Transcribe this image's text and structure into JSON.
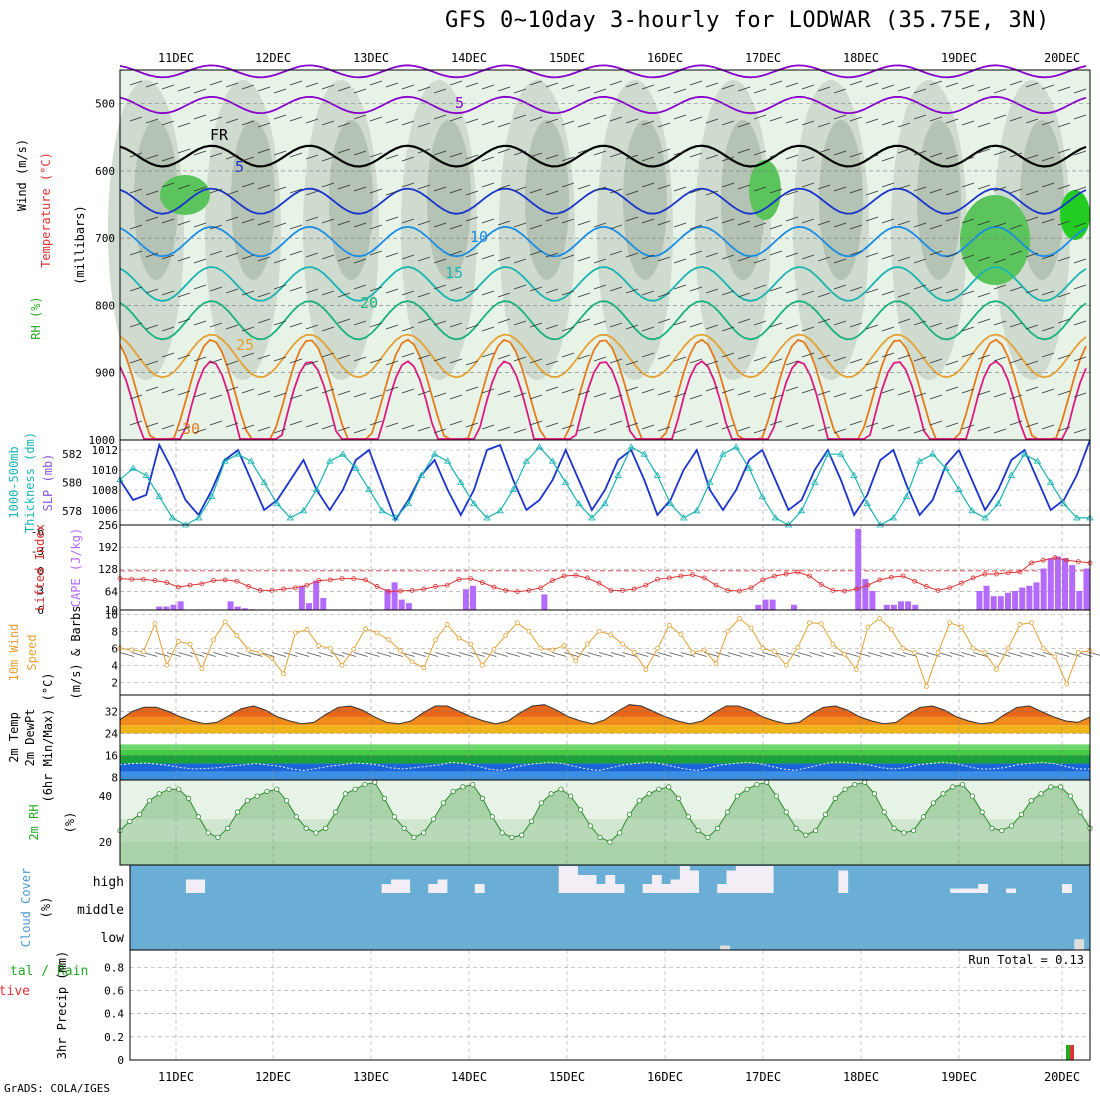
{
  "title": "GFS 0~10day 3-hourly for LODWAR (35.75E, 3N)",
  "footer": "GrADS: COLA/IGES",
  "dates": [
    "11DEC",
    "12DEC",
    "13DEC",
    "14DEC",
    "15DEC",
    "16DEC",
    "17DEC",
    "18DEC",
    "19DEC",
    "20DEC"
  ],
  "colors": {
    "rh_fill": "#c9d6c9",
    "rh_dark": "#a9b9a9",
    "rh_green": "#5cc45c",
    "rh_bright": "#22cc22",
    "temp_lines": [
      "#8800cc",
      "#000000",
      "#1a33cc",
      "#1a8ce6",
      "#1ab3b3",
      "#19b37a",
      "#e6a033",
      "#e67a1a",
      "#dd1a80"
    ],
    "slp": "#1a33cc",
    "thickness": "#1ab3b3",
    "cape": "#b36bff",
    "lifted_index": "#dd3333",
    "wind_speed": "#e6a033",
    "cloud_bg": "#6aaed6",
    "temp_bands": [
      "#d83a1a",
      "#e8661a",
      "#f08a1a",
      "#f0b41a",
      "#6ed86e",
      "#44cc44",
      "#1aa13a",
      "#1a66d8",
      "#3a8fe6"
    ]
  },
  "panels": [
    {
      "id": "upper",
      "labels": [
        {
          "text": "Wind (m/s)",
          "color": "#000"
        },
        {
          "text": "Temperature (°C)",
          "color": "#dd3333"
        },
        {
          "text": "(millibars)",
          "color": "#000"
        },
        {
          "text": "RH (%)",
          "color": "#22aa22"
        }
      ]
    },
    {
      "id": "slp",
      "labels": [
        {
          "text": "1000-500mb",
          "color": "#1ab3b3"
        },
        {
          "text": "Thickness (dm)",
          "color": "#1ab3b3"
        },
        {
          "text": "SLP (mb)",
          "color": "#8855dd"
        }
      ]
    },
    {
      "id": "cape",
      "labels": [
        {
          "text": "Lifted Index",
          "color": "#dd3333"
        },
        {
          "text": "CAPE (J/kg)",
          "color": "#b36bff"
        }
      ]
    },
    {
      "id": "wind",
      "labels": [
        {
          "text": "10m Wind",
          "color": "#e6a033"
        },
        {
          "text": "Speed",
          "color": "#e6a033"
        },
        {
          "text": "(m/s) & Barbs",
          "color": "#000"
        }
      ]
    },
    {
      "id": "temp",
      "labels": [
        {
          "text": "2m Temp",
          "color": "#000"
        },
        {
          "text": "2m DewPt",
          "color": "#000"
        },
        {
          "text": "(6hr Min/Max) (°C)",
          "color": "#000"
        }
      ]
    },
    {
      "id": "rh",
      "labels": [
        {
          "text": "2m RH",
          "color": "#22aa22"
        },
        {
          "text": "(%)",
          "color": "#000"
        }
      ]
    },
    {
      "id": "cloud",
      "labels": [
        {
          "text": "Cloud Cover",
          "color": "#4a9ad0"
        },
        {
          "text": "(%)",
          "color": "#000"
        }
      ]
    },
    {
      "id": "precip",
      "labels": [
        {
          "text": "tal / Rain",
          "color": "#22aa22"
        },
        {
          "text": "Convective",
          "color": "#dd3333"
        },
        {
          "text": "3hr Precip (mm)",
          "color": "#000"
        }
      ]
    }
  ],
  "chart_data": [
    {
      "type": "heatmap",
      "name": "upper-air cross section",
      "y_ticks": [
        500,
        600,
        700,
        800,
        900,
        1000
      ],
      "ylim": [
        1000,
        450
      ],
      "isotherm_labels": [
        {
          "text": "5",
          "color": "#8800cc"
        },
        {
          "text": "FR",
          "color": "#000000"
        },
        {
          "text": "5",
          "color": "#1a33cc"
        },
        {
          "text": "10",
          "color": "#1a8ce6"
        },
        {
          "text": "15",
          "color": "#1ab3b3"
        },
        {
          "text": "20",
          "color": "#19b37a"
        },
        {
          "text": "25",
          "color": "#e6a033"
        },
        {
          "text": "30",
          "color": "#e67a1a"
        }
      ],
      "isotherms_mean_hpa": [
        452,
        502,
        578,
        645,
        705,
        768,
        822,
        875,
        935,
        975
      ]
    },
    {
      "type": "line",
      "name": "SLP and thickness",
      "y_ticks_slp": [
        1006,
        1008,
        1010,
        1012
      ],
      "y_ticks_thickness": [
        578,
        580,
        582
      ],
      "slp_range": [
        1004.5,
        1013
      ],
      "thickness_range": [
        577,
        583
      ],
      "slp_series": [
        1009,
        1007,
        1007.5,
        1012.5,
        1010,
        1007,
        1005.5,
        1008,
        1011,
        1012,
        1009,
        1006,
        1007,
        1009,
        1011,
        1008,
        1006,
        1008,
        1011,
        1012,
        1008.5,
        1005,
        1007,
        1009.5,
        1011,
        1008,
        1005.5,
        1008,
        1012,
        1012.5,
        1009,
        1006,
        1007,
        1009,
        1012,
        1009,
        1006,
        1008,
        1011,
        1012,
        1009,
        1005.5,
        1007,
        1010,
        1012,
        1008,
        1006,
        1008,
        1011,
        1012,
        1009,
        1006,
        1007,
        1010,
        1012,
        1009,
        1005.5,
        1007.5,
        1011,
        1012,
        1008.5,
        1005.5,
        1007,
        1010.5,
        1012,
        1009,
        1006,
        1008,
        1011,
        1012,
        1009,
        1006,
        1007,
        1009.5,
        1013
      ],
      "thickness_series": [
        580.2,
        581,
        580.5,
        579,
        577.5,
        577,
        577.5,
        579,
        581.5,
        582,
        581.5,
        580,
        578.5,
        577.5,
        578,
        579.5,
        581.5,
        582,
        581,
        579.5,
        578,
        577.5,
        578.5,
        580.5,
        582,
        581.5,
        580,
        578.5,
        577.5,
        578,
        579.5,
        581.5,
        582.5,
        581.5,
        580,
        578.5,
        577.5,
        578.5,
        580.5,
        582.5,
        582,
        580.5,
        578.5,
        577.5,
        578,
        580,
        582,
        582.5,
        581,
        579,
        577.5,
        577,
        578,
        580,
        582,
        582,
        580.5,
        578.5,
        577,
        577.5,
        579,
        581.5,
        582,
        581,
        579.5,
        578,
        577.5,
        578.5,
        580.5,
        582,
        581.5,
        580,
        578.5,
        577.5,
        577.5
      ]
    },
    {
      "type": "bar",
      "name": "CAPE and Lifted Index",
      "y_ticks_cape": [
        10,
        64,
        128,
        192,
        256
      ],
      "y_ticks_li": [
        6,
        3,
        0,
        -3,
        -6
      ],
      "cape_range": [
        10,
        256
      ],
      "li_range": [
        6,
        -7
      ],
      "cape_values": [
        0,
        0,
        0,
        0,
        0,
        20,
        20,
        25,
        35,
        0,
        0,
        0,
        0,
        0,
        0,
        35,
        20,
        15,
        12,
        0,
        0,
        0,
        0,
        0,
        0,
        80,
        30,
        95,
        45,
        0,
        0,
        0,
        0,
        0,
        0,
        0,
        0,
        70,
        90,
        40,
        30,
        0,
        0,
        0,
        0,
        0,
        0,
        0,
        70,
        80,
        0,
        0,
        0,
        0,
        0,
        0,
        0,
        0,
        0,
        55,
        0,
        0,
        0,
        0,
        0,
        0,
        0,
        0,
        0,
        0,
        0,
        0,
        0,
        0,
        0,
        0,
        0,
        0,
        0,
        0,
        0,
        0,
        0,
        0,
        0,
        0,
        0,
        0,
        0,
        25,
        40,
        40,
        0,
        0,
        25,
        0,
        0,
        0,
        0,
        0,
        0,
        0,
        0,
        245,
        100,
        65,
        0,
        25,
        25,
        35,
        35,
        25,
        0,
        0,
        0,
        0,
        0,
        0,
        0,
        0,
        65,
        80,
        50,
        50,
        60,
        65,
        75,
        80,
        90,
        130,
        160,
        165,
        160,
        140,
        65,
        130
      ],
      "li_values": [
        1.2,
        1.3,
        1.3,
        1.5,
        1.8,
        2.5,
        2.2,
        2.0,
        1.5,
        1.4,
        1.6,
        2.4,
        3.0,
        3.0,
        2.8,
        2.6,
        2.2,
        1.5,
        1.4,
        1.2,
        1.2,
        1.4,
        2.4,
        3.2,
        3.1,
        3.0,
        2.8,
        2.4,
        2.2,
        1.3,
        1.2,
        1.8,
        2.5,
        3.0,
        3.2,
        3.0,
        2.6,
        1.5,
        0.8,
        0.7,
        1.1,
        1.9,
        3.0,
        3.0,
        2.8,
        2.2,
        1.3,
        1.1,
        0.8,
        0.6,
        1.1,
        2.2,
        3.0,
        3.1,
        2.6,
        1.4,
        0.8,
        0.5,
        0.2,
        0.8,
        2.1,
        3.0,
        3.1,
        2.8,
        2.2,
        1.4,
        1.0,
        0.8,
        1.6,
        2.4,
        3.0,
        2.6,
        1.9,
        1.1,
        0.5,
        0.5,
        0.3,
        0.2,
        -1.2,
        -1.6,
        -2.0,
        -1.6,
        -1.4,
        -1.2
      ]
    },
    {
      "type": "line",
      "name": "10m wind speed",
      "y_ticks": [
        2,
        4,
        6,
        8,
        10
      ],
      "ylim": [
        0.5,
        10.5
      ],
      "values": [
        6,
        5.8,
        5.6,
        8.9,
        4,
        6.8,
        6.5,
        3.6,
        7,
        9.1,
        7.5,
        5.8,
        5.5,
        4.8,
        3,
        7.8,
        8.2,
        6.3,
        6,
        4,
        5.9,
        8.3,
        7.8,
        7,
        5.7,
        4.4,
        3.7,
        7,
        8.8,
        7.2,
        6.5,
        4,
        5.9,
        7.5,
        9,
        8,
        6,
        5.8,
        6.3,
        4.5,
        6.5,
        8,
        7.6,
        6.5,
        5.5,
        3.5,
        6,
        8.7,
        7.6,
        5.5,
        5.8,
        4.2,
        8,
        9.5,
        8.4,
        6,
        5.6,
        4,
        6.1,
        9,
        8.9,
        6.5,
        5.3,
        3.5,
        8.5,
        9.5,
        8.2,
        6,
        5.5,
        1.5,
        5.5,
        9,
        8.5,
        6,
        5.5,
        3.5,
        6,
        8.8,
        9,
        6,
        5,
        1.8,
        5.5,
        5.7
      ]
    },
    {
      "type": "area",
      "name": "2m temperature and dewpoint",
      "y_ticks": [
        8,
        16,
        24,
        32
      ],
      "ylim": [
        7,
        38
      ],
      "temp_max_values": [
        29,
        32,
        33.5,
        33.5,
        32,
        30,
        28.5,
        27.5,
        28,
        30.5,
        33,
        34,
        32.5,
        30,
        28.5,
        27.5,
        28,
        31,
        33.5,
        34,
        32.5,
        30,
        28,
        27.5,
        28.5,
        31.5,
        34,
        34,
        32,
        30,
        28.5,
        27.5,
        28.5,
        31.5,
        34,
        34.5,
        32.5,
        30,
        28.5,
        27.5,
        29,
        32,
        34.5,
        34,
        32,
        30,
        28.5,
        27.5,
        28.5,
        31.5,
        34,
        34,
        32.5,
        30,
        28.5,
        27.5,
        28,
        31,
        33.5,
        34,
        32.5,
        30,
        28.5,
        27.5,
        28,
        31,
        33.5,
        34,
        32.5,
        30,
        28.5,
        27.5,
        28,
        31,
        33.5,
        34,
        32,
        30,
        28.5,
        28,
        30
      ],
      "dewpoint_values": [
        12.5,
        13,
        13.2,
        12.8,
        12.3,
        11.5,
        11,
        11.2,
        11.5,
        12,
        12.5,
        13,
        12.5,
        12,
        11,
        10.5,
        11.2,
        12,
        12.5,
        13.2,
        13,
        12.5,
        11.5,
        11,
        11.5,
        12,
        12.5,
        13.5,
        13,
        12.2,
        11,
        10.5,
        11.5,
        12.5,
        13,
        13.5,
        13,
        12,
        11,
        10.5,
        11.5,
        12.5,
        13,
        13.5,
        13,
        12,
        11,
        10.5,
        11.5,
        12.5,
        13,
        13.5,
        13,
        12,
        11,
        10.5,
        11.5,
        12.5,
        13.5,
        13.5,
        13,
        12.5,
        11.5,
        11,
        11.5,
        12.5,
        13,
        13.5,
        13,
        12,
        11,
        11,
        11.5,
        12.5,
        13,
        13.5,
        13,
        12,
        11,
        11
      ]
    },
    {
      "type": "area",
      "name": "2m relative humidity",
      "y_ticks": [
        20,
        40
      ],
      "ylim": [
        10,
        47
      ],
      "values": [
        25,
        29,
        32,
        38,
        41,
        43,
        43,
        39,
        31,
        24,
        22,
        26,
        33,
        38,
        40,
        42,
        43,
        38,
        31,
        26,
        24,
        26,
        33,
        41,
        43,
        45,
        46,
        39,
        31,
        26,
        22,
        24,
        30,
        37,
        42,
        44,
        45,
        39,
        31,
        24,
        22,
        23,
        29,
        37,
        41,
        43,
        40,
        34,
        27,
        22,
        20,
        24,
        32,
        38,
        41,
        43,
        44,
        39,
        31,
        25,
        22,
        26,
        33,
        40,
        43,
        45,
        46,
        40,
        33,
        26,
        23,
        25,
        32,
        39,
        43,
        45,
        46,
        41,
        33,
        26,
        24,
        25,
        31,
        37,
        41,
        44,
        45,
        40,
        33,
        26,
        25,
        27,
        32,
        38,
        41,
        44,
        44,
        40,
        33,
        26
      ]
    },
    {
      "type": "bar",
      "name": "cloud cover",
      "y_ticks": [
        "high",
        "middle",
        "low"
      ],
      "high_values": [
        0,
        0,
        0,
        0,
        0,
        0,
        15,
        15,
        0,
        0,
        0,
        0,
        0,
        0,
        0,
        0,
        0,
        0,
        0,
        0,
        0,
        0,
        0,
        0,
        0,
        0,
        0,
        10,
        15,
        15,
        0,
        0,
        10,
        15,
        0,
        0,
        0,
        10,
        0,
        0,
        0,
        0,
        0,
        0,
        0,
        0,
        30,
        30,
        20,
        20,
        10,
        20,
        10,
        0,
        0,
        10,
        20,
        10,
        15,
        30,
        25,
        0,
        0,
        10,
        25,
        30,
        30,
        30,
        30,
        0,
        0,
        0,
        0,
        0,
        0,
        0,
        25,
        0,
        0,
        0,
        0,
        0,
        0,
        0,
        0,
        0,
        0,
        0,
        5,
        5,
        5,
        10,
        0,
        0,
        5,
        0,
        0,
        0,
        0,
        0,
        10,
        0,
        0
      ],
      "low_values": [
        0,
        0,
        0,
        0,
        0,
        0,
        0,
        0,
        0,
        0,
        0,
        0,
        0,
        0,
        0,
        0,
        0,
        0,
        0,
        0,
        0,
        0,
        0,
        0,
        0,
        0,
        0,
        0,
        0,
        0,
        0,
        0,
        0,
        0,
        0,
        0,
        0,
        0,
        0,
        0,
        0,
        0,
        0,
        0,
        0,
        0,
        0,
        0,
        0,
        0,
        0,
        0,
        0,
        0,
        0,
        0,
        0,
        0,
        0,
        0,
        0,
        0,
        0,
        0,
        0,
        0,
        0,
        0,
        0,
        0,
        0,
        0,
        0,
        0,
        0,
        5,
        0,
        0,
        0,
        0,
        0,
        0,
        0,
        0,
        0,
        0,
        0,
        0,
        0,
        0,
        0,
        0,
        0,
        0,
        0,
        0,
        0,
        0,
        0,
        0,
        0,
        0,
        0,
        0,
        0,
        0,
        0,
        0,
        0,
        0,
        0,
        0,
        0,
        0,
        0,
        0,
        0,
        0,
        0,
        0,
        12,
        0
      ]
    },
    {
      "type": "bar",
      "name": "3hr precipitation",
      "run_total_label": "Run Total = 0.13",
      "y_ticks": [
        0,
        0.2,
        0.4,
        0.6,
        0.8
      ],
      "ylim": [
        0,
        0.95
      ],
      "values": [
        {
          "x": "20DEC",
          "total": 0.13,
          "convective": 0.13
        }
      ]
    }
  ]
}
